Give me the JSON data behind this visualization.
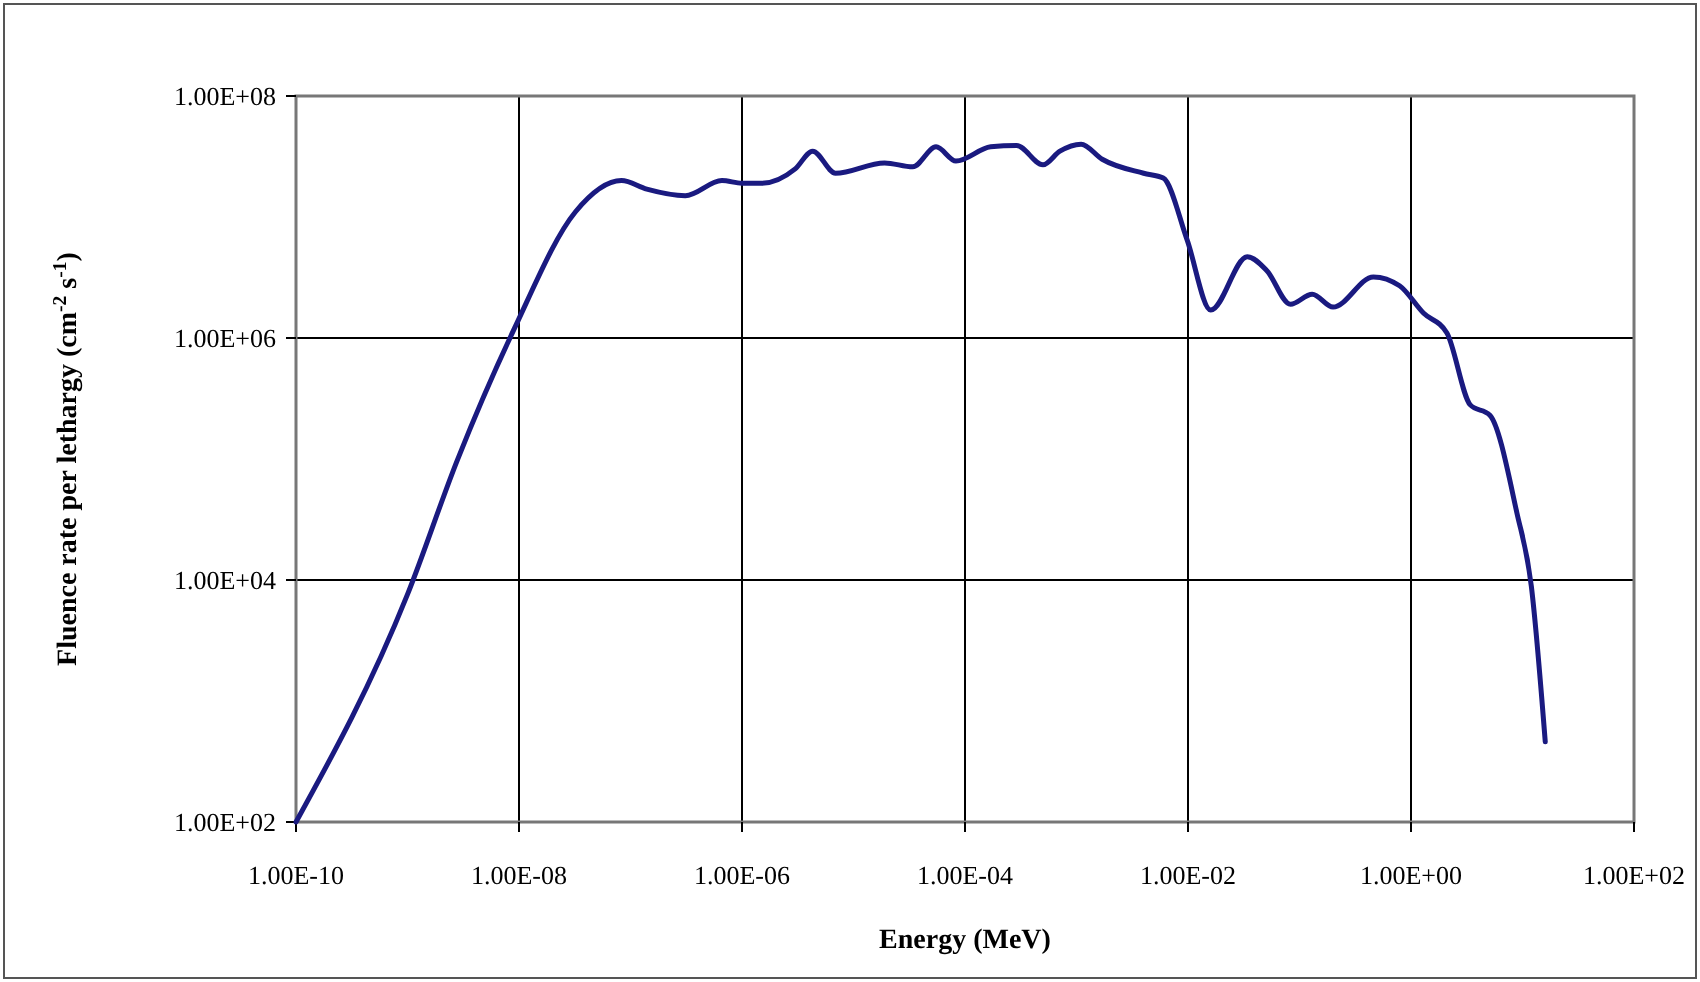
{
  "chart_data": {
    "type": "line",
    "xlabel": "Energy (MeV)",
    "ylabel": "Fluence rate per lethargy (cm$^{-2}$ s$^{-1}$)",
    "log": "xy",
    "grid": true,
    "marker": "none",
    "line_style": "solid",
    "xlim": [
      1e-10,
      100
    ],
    "xticks": [
      {
        "value": 1e-10,
        "label": "1.00E-10"
      },
      {
        "value": 1e-08,
        "label": "1.00E-08"
      },
      {
        "value": 1e-06,
        "label": "1.00E-06"
      },
      {
        "value": 0.0001,
        "label": "1.00E-04"
      },
      {
        "value": 0.01,
        "label": "1.00E-02"
      },
      {
        "value": 1,
        "label": "1.00E+00"
      },
      {
        "value": 100,
        "label": "1.00E+02"
      }
    ],
    "ylim": [
      100,
      100000000.0
    ],
    "yticks": [
      {
        "value": 100,
        "label": "1.00E+02"
      },
      {
        "value": 10000.0,
        "label": "1.00E+04"
      },
      {
        "value": 1000000.0,
        "label": "1.00E+06"
      },
      {
        "value": 100000000.0,
        "label": "1.00E+08"
      }
    ],
    "series": [
      {
        "color": "#1a1a80",
        "x": [
          1e-10,
          1e-09,
          2.8e-09,
          9.1e-09,
          3.2e-08,
          8.3e-08,
          1.4e-07,
          3.1e-07,
          6.6e-07,
          1e-06,
          1.5e-06,
          3e-06,
          4.3e-06,
          6.9e-06,
          1.9e-05,
          3.4e-05,
          5.5e-05,
          8.3e-05,
          0.00017,
          0.00029,
          0.0005,
          0.00071,
          0.0011,
          0.0017,
          0.004,
          0.006,
          0.0098,
          0.016,
          0.034,
          0.051,
          0.083,
          0.13,
          0.2,
          0.46,
          0.79,
          1.3,
          2.1,
          3.4,
          5.1,
          8.9,
          12,
          16
        ],
        "values": [
          100,
          7600,
          98000,
          1200000.0,
          11000000.0,
          20000000.0,
          17000000.0,
          15000000.0,
          20000000.0,
          19000000.0,
          19000000.0,
          25000000.0,
          35000000.0,
          23000000.0,
          28000000.0,
          26000000.0,
          38000000.0,
          29000000.0,
          38000000.0,
          39000000.0,
          27000000.0,
          35000000.0,
          40000000.0,
          30000000.0,
          23000000.0,
          21000000.0,
          6500000.0,
          1700000.0,
          4700000.0,
          3600000.0,
          1900000.0,
          2300000.0,
          1800000.0,
          3200000.0,
          2700000.0,
          1600000.0,
          1100000.0,
          280000.0,
          230000.0,
          36000.0,
          8900,
          460
        ]
      }
    ]
  }
}
